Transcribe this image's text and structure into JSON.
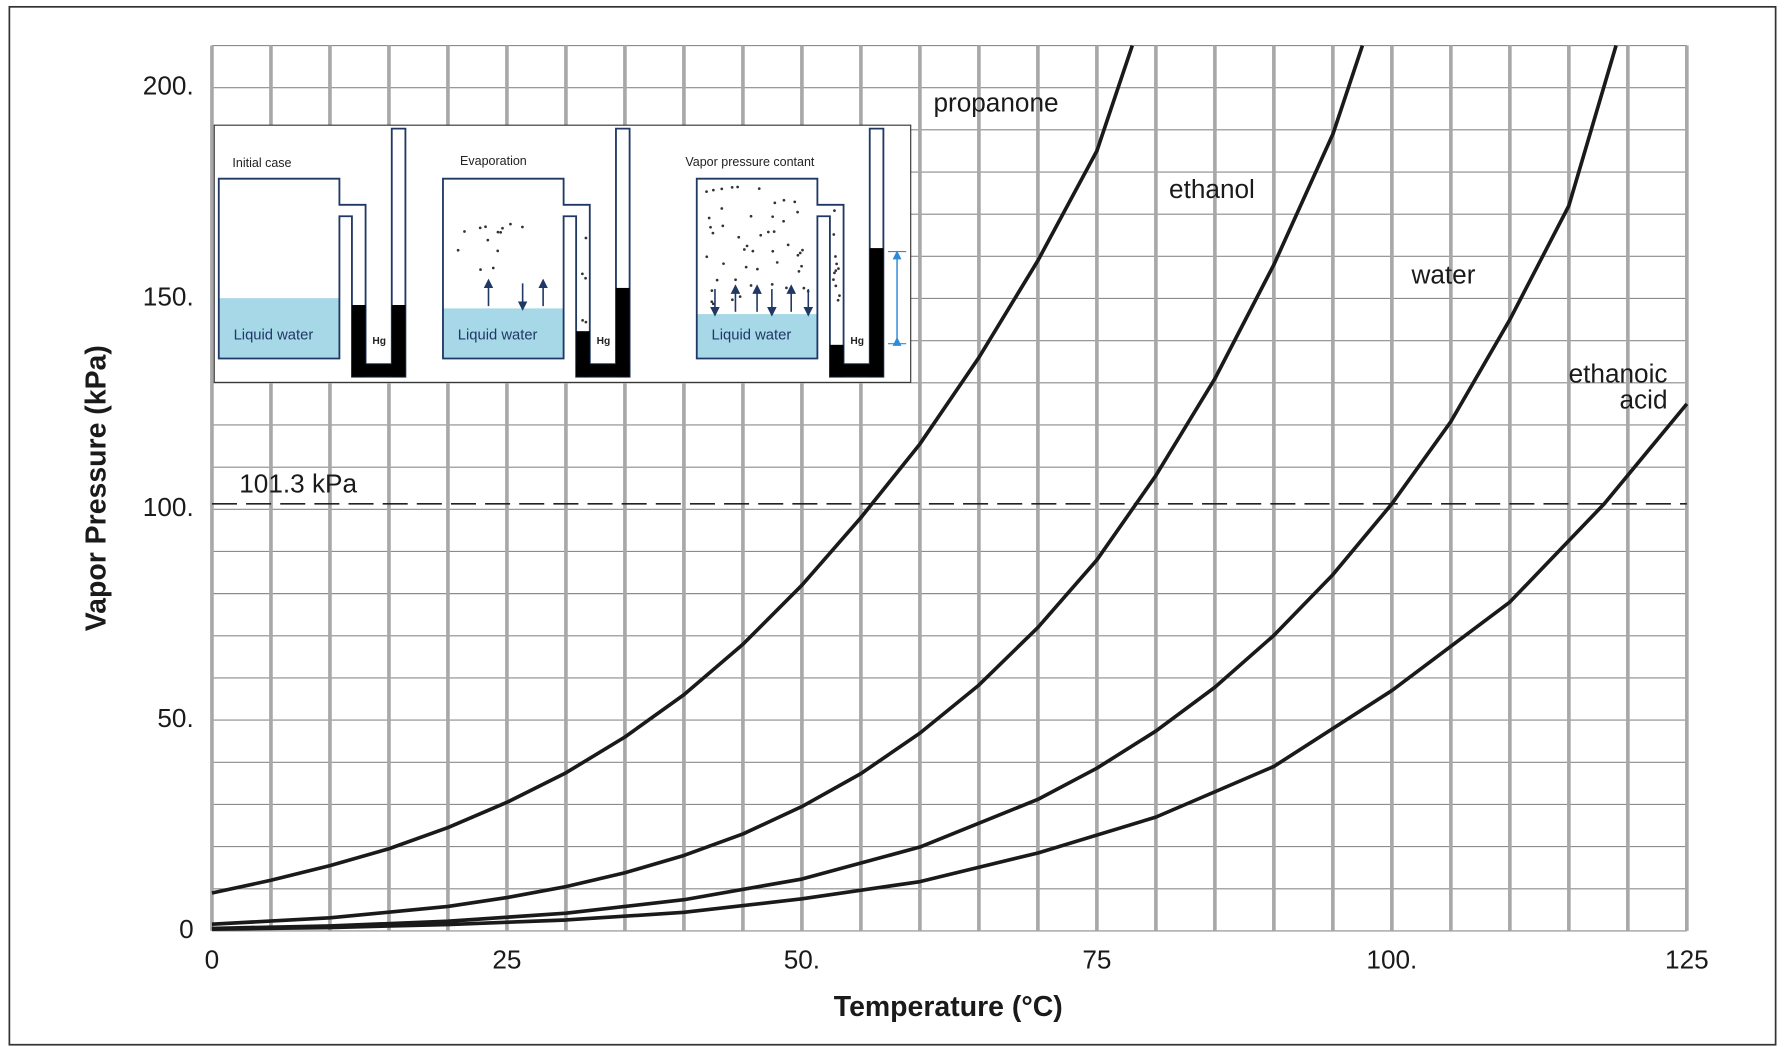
{
  "chart_data": {
    "type": "line",
    "x_label": "Temperature (°C)",
    "y_label": "Vapor Pressure (kPa)",
    "xlim": [
      0,
      125
    ],
    "ylim": [
      0,
      210
    ],
    "xticks": [
      0,
      25,
      {
        "value": 50,
        "label": "50."
      },
      75,
      {
        "value": 100,
        "label": "100."
      },
      125
    ],
    "yticks": [
      0,
      {
        "value": 50,
        "label": "50."
      },
      {
        "value": 100,
        "label": "100."
      },
      {
        "value": 150,
        "label": "150."
      },
      {
        "value": 200,
        "label": "200."
      }
    ],
    "xgrid": [
      0,
      5,
      10,
      15,
      20,
      25,
      30,
      35,
      40,
      45,
      50,
      55,
      60,
      65,
      70,
      75,
      80,
      85,
      90,
      95,
      100,
      105,
      110,
      115,
      120,
      125
    ],
    "ygrid": [
      0,
      10,
      20,
      30,
      40,
      50,
      60,
      70,
      80,
      90,
      100,
      110,
      120,
      130,
      140,
      150,
      160,
      170,
      180,
      190,
      200,
      210
    ],
    "grid": true,
    "reference_line": {
      "value": 101.3,
      "label": "101.3 kPa"
    },
    "series": [
      {
        "name": "propanone",
        "color": "#1a1a1a",
        "x": [
          0,
          5,
          10,
          15,
          20,
          25,
          30,
          35,
          40,
          45,
          50,
          55,
          60,
          65,
          70,
          75,
          78
        ],
        "values": [
          9,
          12,
          15.5,
          19.5,
          24.5,
          30.5,
          37.5,
          46,
          56,
          68,
          82,
          98,
          115.5,
          136,
          159,
          185,
          210
        ]
      },
      {
        "name": "ethanol",
        "color": "#1a1a1a",
        "x": [
          0,
          10,
          20,
          25,
          30,
          35,
          40,
          45,
          50,
          55,
          60,
          65,
          70,
          75,
          80,
          85,
          90,
          95,
          97.5
        ],
        "values": [
          1.6,
          3.1,
          5.8,
          7.9,
          10.5,
          13.8,
          17.9,
          23,
          29.5,
          37.3,
          46.9,
          58.3,
          72,
          88,
          108,
          131,
          158,
          189,
          210
        ]
      },
      {
        "name": "water",
        "color": "#1a1a1a",
        "x": [
          0,
          10,
          20,
          30,
          40,
          50,
          60,
          70,
          75,
          80,
          85,
          90,
          95,
          100,
          105,
          110,
          115,
          119
        ],
        "values": [
          0.6,
          1.2,
          2.3,
          4.2,
          7.4,
          12.3,
          19.9,
          31.2,
          38.6,
          47.4,
          57.8,
          70.1,
          84.5,
          101.3,
          120.8,
          145,
          172,
          210
        ]
      },
      {
        "name": "ethanoic acid",
        "color": "#1a1a1a",
        "x": [
          0,
          10,
          20,
          30,
          40,
          50,
          60,
          70,
          80,
          90,
          100,
          110,
          118,
          125
        ],
        "values": [
          0.4,
          0.8,
          1.5,
          2.6,
          4.4,
          7.6,
          11.7,
          18.5,
          27,
          39,
          57,
          78,
          101.3,
          125
        ]
      }
    ]
  },
  "inset": {
    "panels": [
      {
        "title": "Initial case",
        "liquid": "Liquid water",
        "hg": "Hg"
      },
      {
        "title": "Evaporation",
        "liquid": "Liquid water",
        "hg": "Hg"
      },
      {
        "title": "Vapor pressure contant",
        "liquid": "Liquid water",
        "hg": "Hg"
      }
    ]
  }
}
